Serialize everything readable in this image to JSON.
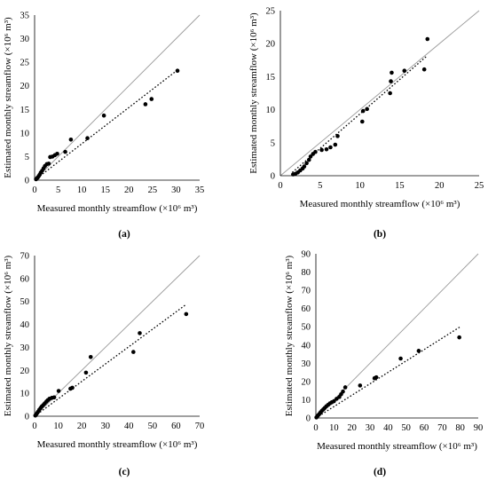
{
  "chart_data": [
    {
      "type": "scatter",
      "panel_label": "(a)",
      "xlabel": "Measured monthly streamflow (×10⁶ m³)",
      "ylabel": "Estimated monthly streamflow (×10⁶ m³)",
      "xlim": [
        0,
        35
      ],
      "ylim": [
        0,
        35
      ],
      "xticks": [
        0,
        5,
        10,
        15,
        20,
        25,
        30,
        35
      ],
      "yticks": [
        0,
        5,
        10,
        15,
        20,
        25,
        30,
        35
      ],
      "grid": false,
      "reference_line": "1:1",
      "trendline": {
        "style": "dotted",
        "x": [
          0,
          30.5
        ],
        "y": [
          0,
          23.5
        ]
      },
      "points": [
        {
          "x": 0.3,
          "y": 0.2
        },
        {
          "x": 0.5,
          "y": 0.4
        },
        {
          "x": 0.7,
          "y": 0.6
        },
        {
          "x": 0.9,
          "y": 0.9
        },
        {
          "x": 1.1,
          "y": 1.2
        },
        {
          "x": 1.3,
          "y": 1.6
        },
        {
          "x": 1.6,
          "y": 2.0
        },
        {
          "x": 1.9,
          "y": 2.5
        },
        {
          "x": 2.2,
          "y": 3.0
        },
        {
          "x": 2.6,
          "y": 3.4
        },
        {
          "x": 3.0,
          "y": 3.5
        },
        {
          "x": 3.3,
          "y": 4.9
        },
        {
          "x": 3.8,
          "y": 5.0
        },
        {
          "x": 4.3,
          "y": 5.3
        },
        {
          "x": 4.8,
          "y": 5.6
        },
        {
          "x": 6.5,
          "y": 6.0
        },
        {
          "x": 7.7,
          "y": 8.6
        },
        {
          "x": 11.2,
          "y": 8.9
        },
        {
          "x": 14.7,
          "y": 13.7
        },
        {
          "x": 23.5,
          "y": 16.1
        },
        {
          "x": 24.8,
          "y": 17.2
        },
        {
          "x": 30.3,
          "y": 23.2
        }
      ]
    },
    {
      "type": "scatter",
      "panel_label": "(b)",
      "xlabel": "Measured monthly streamflow (×10⁶ m³)",
      "ylabel": "Estimated monthly streamflow (×10⁶ m³)",
      "xlim": [
        0,
        25
      ],
      "ylim": [
        0,
        25
      ],
      "xticks": [
        0,
        5,
        10,
        15,
        20,
        25
      ],
      "yticks": [
        0,
        5,
        10,
        15,
        20,
        25
      ],
      "grid": false,
      "reference_line": "1:1",
      "trendline": {
        "style": "dotted",
        "x": [
          1.5,
          18.5
        ],
        "y": [
          0.5,
          18.2
        ]
      },
      "points": [
        {
          "x": 1.6,
          "y": 0.2
        },
        {
          "x": 1.9,
          "y": 0.3
        },
        {
          "x": 2.2,
          "y": 0.5
        },
        {
          "x": 2.5,
          "y": 0.8
        },
        {
          "x": 2.8,
          "y": 1.1
        },
        {
          "x": 3.0,
          "y": 1.4
        },
        {
          "x": 3.3,
          "y": 1.9
        },
        {
          "x": 3.6,
          "y": 2.4
        },
        {
          "x": 3.8,
          "y": 2.9
        },
        {
          "x": 4.1,
          "y": 3.3
        },
        {
          "x": 4.4,
          "y": 3.6
        },
        {
          "x": 5.2,
          "y": 3.9
        },
        {
          "x": 5.8,
          "y": 4.0
        },
        {
          "x": 6.3,
          "y": 4.3
        },
        {
          "x": 6.9,
          "y": 4.7
        },
        {
          "x": 7.2,
          "y": 6.0
        },
        {
          "x": 10.3,
          "y": 8.2
        },
        {
          "x": 10.4,
          "y": 9.8
        },
        {
          "x": 10.9,
          "y": 10.1
        },
        {
          "x": 13.8,
          "y": 12.5
        },
        {
          "x": 13.9,
          "y": 14.3
        },
        {
          "x": 14.0,
          "y": 15.6
        },
        {
          "x": 15.6,
          "y": 15.9
        },
        {
          "x": 18.1,
          "y": 16.1
        },
        {
          "x": 18.5,
          "y": 20.7
        }
      ]
    },
    {
      "type": "scatter",
      "panel_label": "(c)",
      "xlabel": "Measured monthly streamflow (×10⁶ m³)",
      "ylabel": "Estimated monthly streamflow (×10⁶ m³)",
      "xlim": [
        0,
        70
      ],
      "ylim": [
        0,
        70
      ],
      "xticks": [
        0,
        10,
        20,
        30,
        40,
        50,
        60,
        70
      ],
      "yticks": [
        0,
        10,
        20,
        30,
        40,
        50,
        60,
        70
      ],
      "grid": false,
      "reference_line": "1:1",
      "trendline": {
        "style": "dotted",
        "x": [
          0,
          64
        ],
        "y": [
          0,
          48.5
        ]
      },
      "points": [
        {
          "x": 0.3,
          "y": 0.3
        },
        {
          "x": 0.7,
          "y": 0.8
        },
        {
          "x": 1.1,
          "y": 1.4
        },
        {
          "x": 1.5,
          "y": 2.0
        },
        {
          "x": 2.0,
          "y": 2.8
        },
        {
          "x": 2.5,
          "y": 3.5
        },
        {
          "x": 3.0,
          "y": 4.2
        },
        {
          "x": 3.6,
          "y": 4.8
        },
        {
          "x": 4.3,
          "y": 5.6
        },
        {
          "x": 5.0,
          "y": 6.4
        },
        {
          "x": 5.6,
          "y": 7.0
        },
        {
          "x": 6.3,
          "y": 7.6
        },
        {
          "x": 7.3,
          "y": 8.0
        },
        {
          "x": 8.3,
          "y": 8.2
        },
        {
          "x": 10.2,
          "y": 11.0
        },
        {
          "x": 15.2,
          "y": 12.0
        },
        {
          "x": 16.0,
          "y": 12.4
        },
        {
          "x": 21.8,
          "y": 19.0
        },
        {
          "x": 23.8,
          "y": 25.8
        },
        {
          "x": 41.9,
          "y": 28.0
        },
        {
          "x": 44.6,
          "y": 36.2
        },
        {
          "x": 64.3,
          "y": 44.5
        }
      ]
    },
    {
      "type": "scatter",
      "panel_label": "(d)",
      "xlabel": "Measured monthly streamflow (×10⁶ m³)",
      "ylabel": "Estimated monthly streamflow (×10⁶ m³)",
      "xlim": [
        0,
        90
      ],
      "ylim": [
        0,
        90
      ],
      "xticks": [
        0,
        10,
        20,
        30,
        40,
        50,
        60,
        70,
        80,
        90
      ],
      "yticks": [
        0,
        10,
        20,
        30,
        40,
        50,
        60,
        70,
        80,
        90
      ],
      "grid": false,
      "reference_line": "1:1",
      "trendline": {
        "style": "dotted",
        "x": [
          0,
          80
        ],
        "y": [
          0,
          50
        ]
      },
      "points": [
        {
          "x": 0.3,
          "y": 0.3
        },
        {
          "x": 0.8,
          "y": 0.9
        },
        {
          "x": 1.3,
          "y": 1.5
        },
        {
          "x": 1.9,
          "y": 2.2
        },
        {
          "x": 2.6,
          "y": 3.1
        },
        {
          "x": 3.3,
          "y": 3.9
        },
        {
          "x": 4.1,
          "y": 4.7
        },
        {
          "x": 4.9,
          "y": 5.5
        },
        {
          "x": 5.8,
          "y": 6.4
        },
        {
          "x": 6.8,
          "y": 7.2
        },
        {
          "x": 7.8,
          "y": 8.0
        },
        {
          "x": 8.8,
          "y": 8.6
        },
        {
          "x": 10.0,
          "y": 9.2
        },
        {
          "x": 11.5,
          "y": 10.5
        },
        {
          "x": 13.0,
          "y": 11.5
        },
        {
          "x": 14.0,
          "y": 13.0
        },
        {
          "x": 15.0,
          "y": 14.5
        },
        {
          "x": 16.3,
          "y": 16.8
        },
        {
          "x": 24.5,
          "y": 17.8
        },
        {
          "x": 32.5,
          "y": 21.8
        },
        {
          "x": 33.5,
          "y": 22.3
        },
        {
          "x": 47.0,
          "y": 32.6
        },
        {
          "x": 57.0,
          "y": 36.8
        },
        {
          "x": 79.5,
          "y": 44.2
        }
      ]
    }
  ]
}
